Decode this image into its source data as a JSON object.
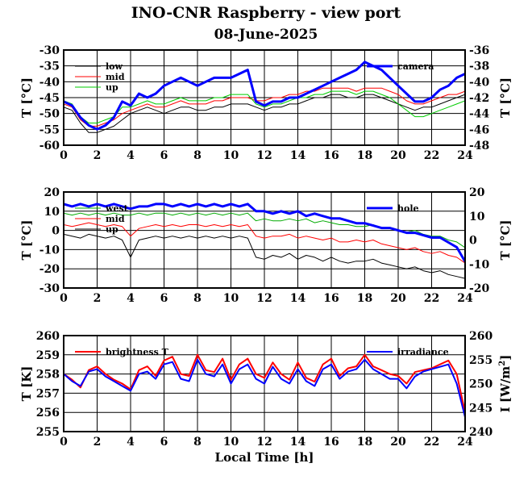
{
  "header": {
    "title": "INO-CNR Raspberry - view port",
    "date": "08-June-2025"
  },
  "chart_data": [
    {
      "type": "line",
      "xlabel": "",
      "ylabel": "T [°C]",
      "ylabel_right": "T [°C]",
      "xlim": [
        0,
        24
      ],
      "ylim": [
        -60,
        -30
      ],
      "ylim_right": [
        -48,
        -36
      ],
      "xticks": [
        "0",
        "2",
        "4",
        "6",
        "8",
        "10",
        "12",
        "14",
        "16",
        "18",
        "20",
        "22",
        "24"
      ],
      "yticks": [
        "-30",
        "-35",
        "-40",
        "-45",
        "-50",
        "-55",
        "-60"
      ],
      "yticks_right": [
        "-36",
        "-38",
        "-40",
        "-42",
        "-44",
        "-46",
        "-48"
      ],
      "grid": true,
      "legend": "top-left",
      "colors": {
        "low": "#000000",
        "mid": "#ff0000",
        "up": "#00cc00",
        "camera": "#0000ff"
      },
      "x": [
        0,
        0.5,
        1,
        1.5,
        2,
        2.5,
        3,
        3.5,
        4,
        4.5,
        5,
        5.5,
        6,
        6.5,
        7,
        7.5,
        8,
        8.5,
        9,
        9.5,
        10,
        10.5,
        11,
        11.5,
        12,
        12.5,
        13,
        13.5,
        14,
        14.5,
        15,
        15.5,
        16,
        16.5,
        17,
        17.5,
        18,
        18.5,
        19,
        19.5,
        20,
        20.5,
        21,
        21.5,
        22,
        22.5,
        23,
        23.5,
        24
      ],
      "series": [
        {
          "name": "low",
          "axis": "left",
          "values": [
            -48,
            -49,
            -53,
            -56,
            -56,
            -55,
            -54,
            -52,
            -50,
            -49,
            -48,
            -49,
            -50,
            -49,
            -48,
            -48,
            -49,
            -49,
            -48,
            -48,
            -47,
            -47,
            -47,
            -48,
            -49,
            -48,
            -48,
            -47,
            -47,
            -46,
            -45,
            -45,
            -44,
            -44,
            -45,
            -45,
            -44,
            -44,
            -45,
            -46,
            -47,
            -48,
            -49,
            -48,
            -48,
            -47,
            -46,
            -45,
            -44
          ]
        },
        {
          "name": "mid",
          "axis": "left",
          "values": [
            -47,
            -48,
            -52,
            -54,
            -54,
            -53,
            -52,
            -50,
            -49,
            -48,
            -47,
            -48,
            -48,
            -47,
            -46,
            -47,
            -47,
            -47,
            -46,
            -46,
            -45,
            -45,
            -45,
            -46,
            -46,
            -45,
            -45,
            -44,
            -44,
            -43,
            -43,
            -42,
            -42,
            -42,
            -42,
            -43,
            -42,
            -42,
            -42,
            -43,
            -44,
            -46,
            -47,
            -47,
            -46,
            -45,
            -44,
            -44,
            -43
          ]
        },
        {
          "name": "up",
          "axis": "left",
          "values": [
            -46,
            -47,
            -51,
            -53,
            -53,
            -52,
            -51,
            -48,
            -48,
            -47,
            -46,
            -47,
            -47,
            -46,
            -45,
            -46,
            -46,
            -46,
            -45,
            -45,
            -44,
            -44,
            -44,
            -47,
            -48,
            -47,
            -47,
            -46,
            -45,
            -45,
            -44,
            -44,
            -43,
            -43,
            -43,
            -44,
            -43,
            -43,
            -44,
            -45,
            -47,
            -49,
            -51,
            -51,
            -50,
            -49,
            -48,
            -47,
            -46
          ]
        },
        {
          "name": "camera",
          "axis": "right",
          "values": [
            -42.5,
            -43,
            -44.5,
            -45.5,
            -46,
            -45.5,
            -44.5,
            -42.5,
            -43,
            -41.5,
            -42,
            -41.5,
            -40.5,
            -40,
            -39.5,
            -40,
            -40.5,
            -40,
            -39.5,
            -39.5,
            -39.5,
            -39,
            -38.5,
            -42.5,
            -43,
            -42.5,
            -42.5,
            -42,
            -42,
            -41.5,
            -41,
            -40.5,
            -40,
            -39.5,
            -39,
            -38.5,
            -37.5,
            -38,
            -38.5,
            -39.5,
            -40.5,
            -41.5,
            -42.5,
            -42.5,
            -42,
            -41,
            -40.5,
            -39.5,
            -39
          ]
        }
      ]
    },
    {
      "type": "line",
      "xlabel": "",
      "ylabel": "T [°C]",
      "ylabel_right": "T [°C]",
      "xlim": [
        0,
        24
      ],
      "ylim": [
        -30,
        20
      ],
      "ylim_right": [
        -20,
        20
      ],
      "xticks": [
        "0",
        "2",
        "4",
        "6",
        "8",
        "10",
        "12",
        "14",
        "16",
        "18",
        "20",
        "22",
        "24"
      ],
      "yticks": [
        "20",
        "10",
        "0",
        "-10",
        "-20",
        "-30"
      ],
      "yticks_right": [
        "20",
        "10",
        "0",
        "-10",
        "-20"
      ],
      "grid": true,
      "legend": "top-left",
      "colors": {
        "west": "#00aa00",
        "mid": "#ff0000",
        "up": "#000000",
        "hole": "#0000ff"
      },
      "x": [
        0,
        0.5,
        1,
        1.5,
        2,
        2.5,
        3,
        3.5,
        4,
        4.5,
        5,
        5.5,
        6,
        6.5,
        7,
        7.5,
        8,
        8.5,
        9,
        9.5,
        10,
        10.5,
        11,
        11.5,
        12,
        12.5,
        13,
        13.5,
        14,
        14.5,
        15,
        15.5,
        16,
        16.5,
        17,
        17.5,
        18,
        18.5,
        19,
        19.5,
        20,
        20.5,
        21,
        21.5,
        22,
        22.5,
        23,
        23.5,
        24
      ],
      "series": [
        {
          "name": "west",
          "axis": "left",
          "values": [
            9,
            8,
            9,
            8,
            9,
            8,
            9,
            8,
            8,
            9,
            8,
            9,
            9,
            8,
            9,
            8,
            9,
            8,
            9,
            8,
            9,
            8,
            9,
            5,
            6,
            5,
            5,
            6,
            5,
            6,
            4,
            5,
            4,
            3,
            3,
            2,
            2,
            3,
            1,
            1,
            0,
            -1,
            0,
            -2,
            -3,
            -3,
            -5,
            -6,
            -9
          ]
        },
        {
          "name": "mid",
          "axis": "left",
          "values": [
            3,
            2,
            3,
            4,
            3,
            2,
            3,
            2,
            -3,
            1,
            2,
            3,
            2,
            3,
            2,
            3,
            3,
            2,
            3,
            2,
            3,
            2,
            3,
            -3,
            -4,
            -3,
            -3,
            -2,
            -4,
            -3,
            -4,
            -5,
            -4,
            -6,
            -6,
            -5,
            -6,
            -5,
            -7,
            -8,
            -9,
            -10,
            -9,
            -11,
            -12,
            -11,
            -13,
            -14,
            -17
          ]
        },
        {
          "name": "up",
          "axis": "left",
          "values": [
            -2,
            -3,
            -4,
            -2,
            -3,
            -4,
            -3,
            -5,
            -14,
            -5,
            -4,
            -3,
            -4,
            -3,
            -4,
            -3,
            -4,
            -3,
            -4,
            -3,
            -4,
            -3,
            -4,
            -14,
            -15,
            -13,
            -14,
            -12,
            -15,
            -13,
            -14,
            -16,
            -14,
            -16,
            -17,
            -16,
            -16,
            -15,
            -17,
            -18,
            -19,
            -20,
            -19,
            -21,
            -22,
            -21,
            -23,
            -24,
            -25
          ]
        },
        {
          "name": "hole",
          "axis": "right",
          "values": [
            15,
            14,
            15,
            14,
            15,
            14,
            15,
            14,
            13,
            14,
            14,
            15,
            15,
            14,
            15,
            14,
            15,
            14,
            15,
            14,
            15,
            14,
            15,
            12,
            12,
            11,
            12,
            11,
            12,
            10,
            11,
            10,
            9,
            9,
            8,
            7,
            7,
            6,
            5,
            5,
            4,
            3,
            3,
            2,
            1,
            1,
            -1,
            -3,
            -9
          ]
        }
      ]
    },
    {
      "type": "line",
      "xlabel": "Local Time [h]",
      "ylabel": "T [K]",
      "ylabel_right": "I [W/m",
      "ylabel_right_sup": "2",
      "ylabel_right_end": "]",
      "xlim": [
        0,
        24
      ],
      "ylim": [
        255,
        260
      ],
      "ylim_right": [
        240,
        260
      ],
      "xticks": [
        "0",
        "2",
        "4",
        "6",
        "8",
        "10",
        "12",
        "14",
        "16",
        "18",
        "20",
        "22",
        "24"
      ],
      "yticks": [
        "260",
        "259",
        "258",
        "257",
        "256",
        "255"
      ],
      "yticks_right": [
        "260",
        "255",
        "250",
        "245",
        "240"
      ],
      "grid": true,
      "legend": "top-left",
      "colors": {
        "brightness T": "#ff0000",
        "irradiance": "#0000ff"
      },
      "x": [
        0,
        0.5,
        1,
        1.5,
        2,
        2.5,
        3,
        3.5,
        4,
        4.5,
        5,
        5.5,
        6,
        6.5,
        7,
        7.5,
        8,
        8.5,
        9,
        9.5,
        10,
        10.5,
        11,
        11.5,
        12,
        12.5,
        13,
        13.5,
        14,
        14.5,
        15,
        15.5,
        16,
        16.5,
        17,
        17.5,
        18,
        18.5,
        19,
        19.5,
        20,
        20.5,
        21,
        21.5,
        22,
        22.5,
        23,
        23.5,
        24
      ],
      "series": [
        {
          "name": "brightness T",
          "axis": "left",
          "values": [
            258.0,
            257.7,
            257.3,
            258.2,
            258.4,
            258.0,
            257.7,
            257.5,
            257.2,
            258.2,
            258.4,
            257.9,
            258.7,
            258.9,
            258.0,
            257.9,
            259.0,
            258.2,
            258.1,
            258.8,
            257.7,
            258.5,
            258.8,
            258.0,
            257.8,
            258.6,
            258.0,
            257.7,
            258.6,
            257.8,
            257.6,
            258.5,
            258.8,
            257.9,
            258.3,
            258.4,
            259.0,
            258.4,
            258.2,
            258.0,
            257.9,
            257.5,
            258.1,
            258.2,
            258.3,
            258.5,
            258.7,
            258.0,
            256.0
          ]
        },
        {
          "name": "irradiance",
          "axis": "right",
          "values": [
            252.0,
            250.5,
            249.5,
            252.5,
            253.0,
            251.5,
            250.5,
            249.5,
            248.5,
            252.0,
            252.5,
            251.0,
            254.0,
            254.5,
            251.0,
            250.5,
            255.0,
            252.0,
            251.5,
            254.0,
            250.0,
            253.0,
            254.0,
            251.0,
            250.0,
            253.5,
            251.0,
            250.0,
            253.0,
            250.5,
            249.5,
            253.0,
            254.0,
            251.0,
            252.5,
            253.0,
            255.0,
            253.0,
            252.0,
            251.0,
            251.0,
            249.0,
            251.5,
            252.5,
            253.0,
            253.5,
            254.0,
            250.0,
            243.0
          ]
        }
      ]
    }
  ]
}
